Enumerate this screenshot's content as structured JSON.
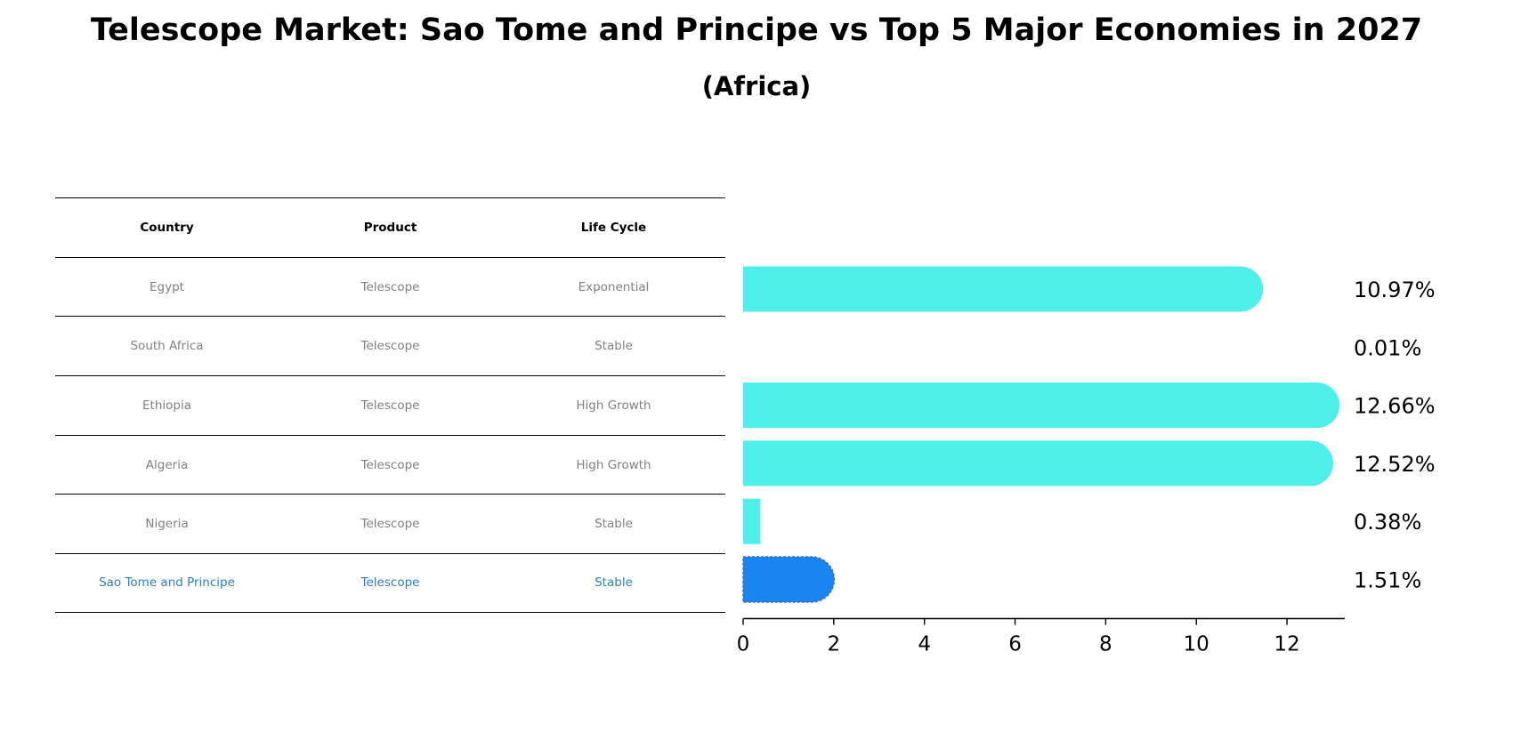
{
  "title": "Telescope Market: Sao Tome and Principe vs Top 5 Major Economies in 2027",
  "subtitle": "(Africa)",
  "table": {
    "headers": [
      "Country",
      "Product",
      "Life Cycle"
    ],
    "rows": [
      {
        "country": "Egypt",
        "product": "Telescope",
        "life_cycle": "Exponential"
      },
      {
        "country": "South Africa",
        "product": "Telescope",
        "life_cycle": "Stable"
      },
      {
        "country": "Ethiopia",
        "product": "Telescope",
        "life_cycle": "High Growth"
      },
      {
        "country": "Algeria",
        "product": "Telescope",
        "life_cycle": "High Growth"
      },
      {
        "country": "Nigeria",
        "product": "Telescope",
        "life_cycle": "Stable"
      },
      {
        "country": "Sao Tome and Principe",
        "product": "Telescope",
        "life_cycle": "Stable"
      }
    ]
  },
  "colors": {
    "bar": "#4eeeea",
    "highlight_bar": "#1a85f0",
    "highlight_text": "#2a7fc5",
    "muted_text": "#808080"
  },
  "chart_data": {
    "type": "bar",
    "orientation": "horizontal",
    "title": "Telescope Market: Sao Tome and Principe vs Top 5 Major Economies in 2027",
    "subtitle": "(Africa)",
    "categories": [
      "Egypt",
      "South Africa",
      "Ethiopia",
      "Algeria",
      "Nigeria",
      "Sao Tome and Principe"
    ],
    "values": [
      10.97,
      0.01,
      12.66,
      12.52,
      0.38,
      1.51
    ],
    "value_labels": [
      "10.97%",
      "0.01%",
      "12.66%",
      "12.52%",
      "0.38%",
      "1.51%"
    ],
    "highlight": "Sao Tome and Principe",
    "xlabel": "",
    "ylabel": "",
    "xticks": [
      "0",
      "2",
      "4",
      "6",
      "8",
      "10",
      "12"
    ],
    "xlim": [
      0,
      13.2
    ],
    "grid": false,
    "legend": null
  }
}
